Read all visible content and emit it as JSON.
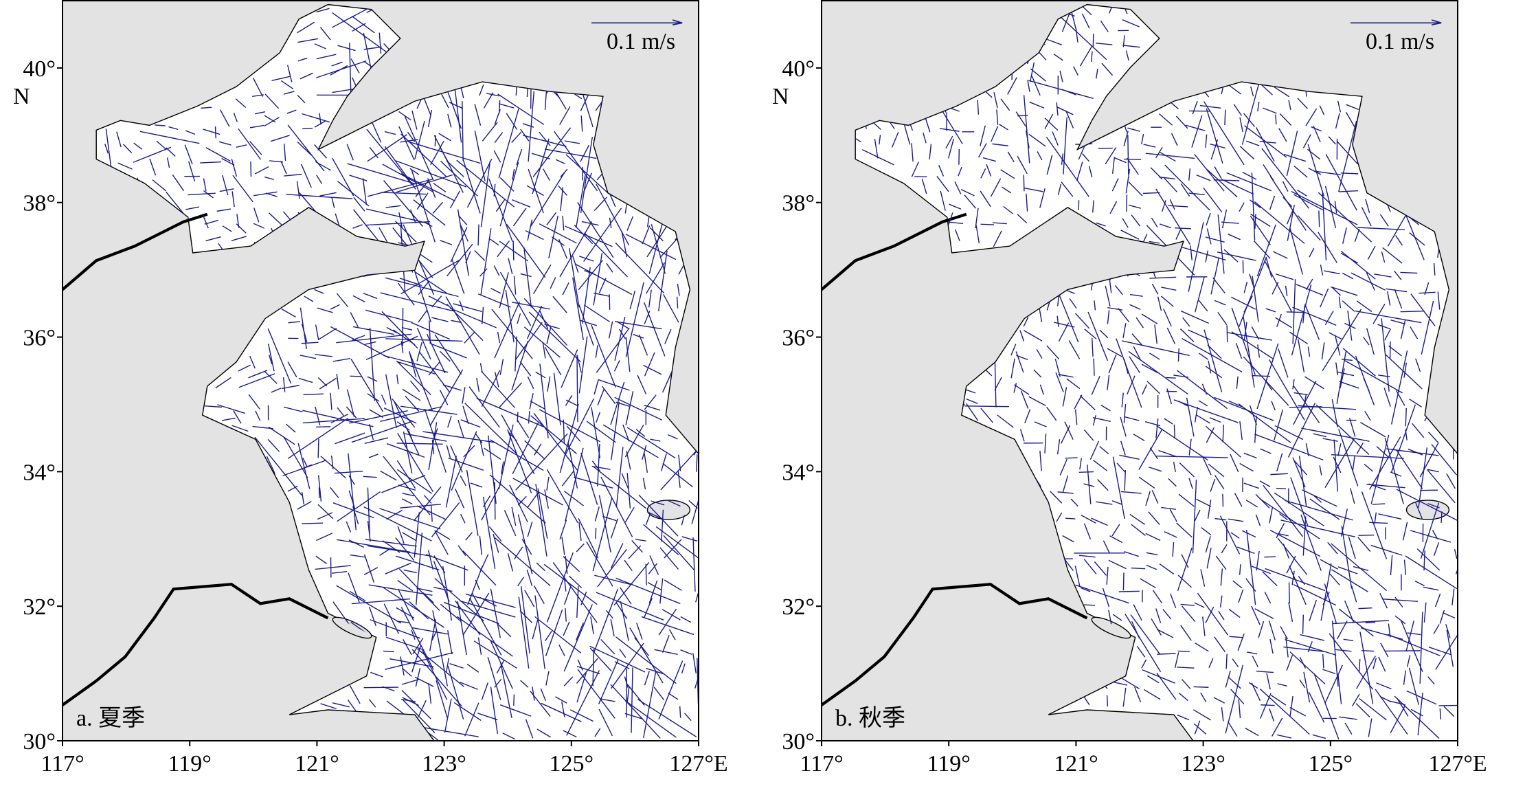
{
  "axes": {
    "xlim": [
      117,
      127
    ],
    "xticks": [
      {
        "value": 117,
        "label": "117°"
      },
      {
        "value": 119,
        "label": "119°"
      },
      {
        "value": 121,
        "label": "121°"
      },
      {
        "value": 123,
        "label": "123°"
      },
      {
        "value": 125,
        "label": "125°"
      },
      {
        "value": 127,
        "label": "127°E"
      }
    ],
    "ylim": [
      30,
      41
    ],
    "yticks": [
      {
        "value": 30,
        "label": "30°"
      },
      {
        "value": 32,
        "label": "32°"
      },
      {
        "value": 34,
        "label": "34°"
      },
      {
        "value": 36,
        "label": "36°"
      },
      {
        "value": 38,
        "label": "38°"
      },
      {
        "value": 40,
        "label": "40°"
      }
    ],
    "ylabel": "N"
  },
  "panels": [
    {
      "label": "a. 夏季",
      "scale_label": "0.1 m/s"
    },
    {
      "label": "b. 秋季",
      "scale_label": "0.1 m/s"
    }
  ]
}
